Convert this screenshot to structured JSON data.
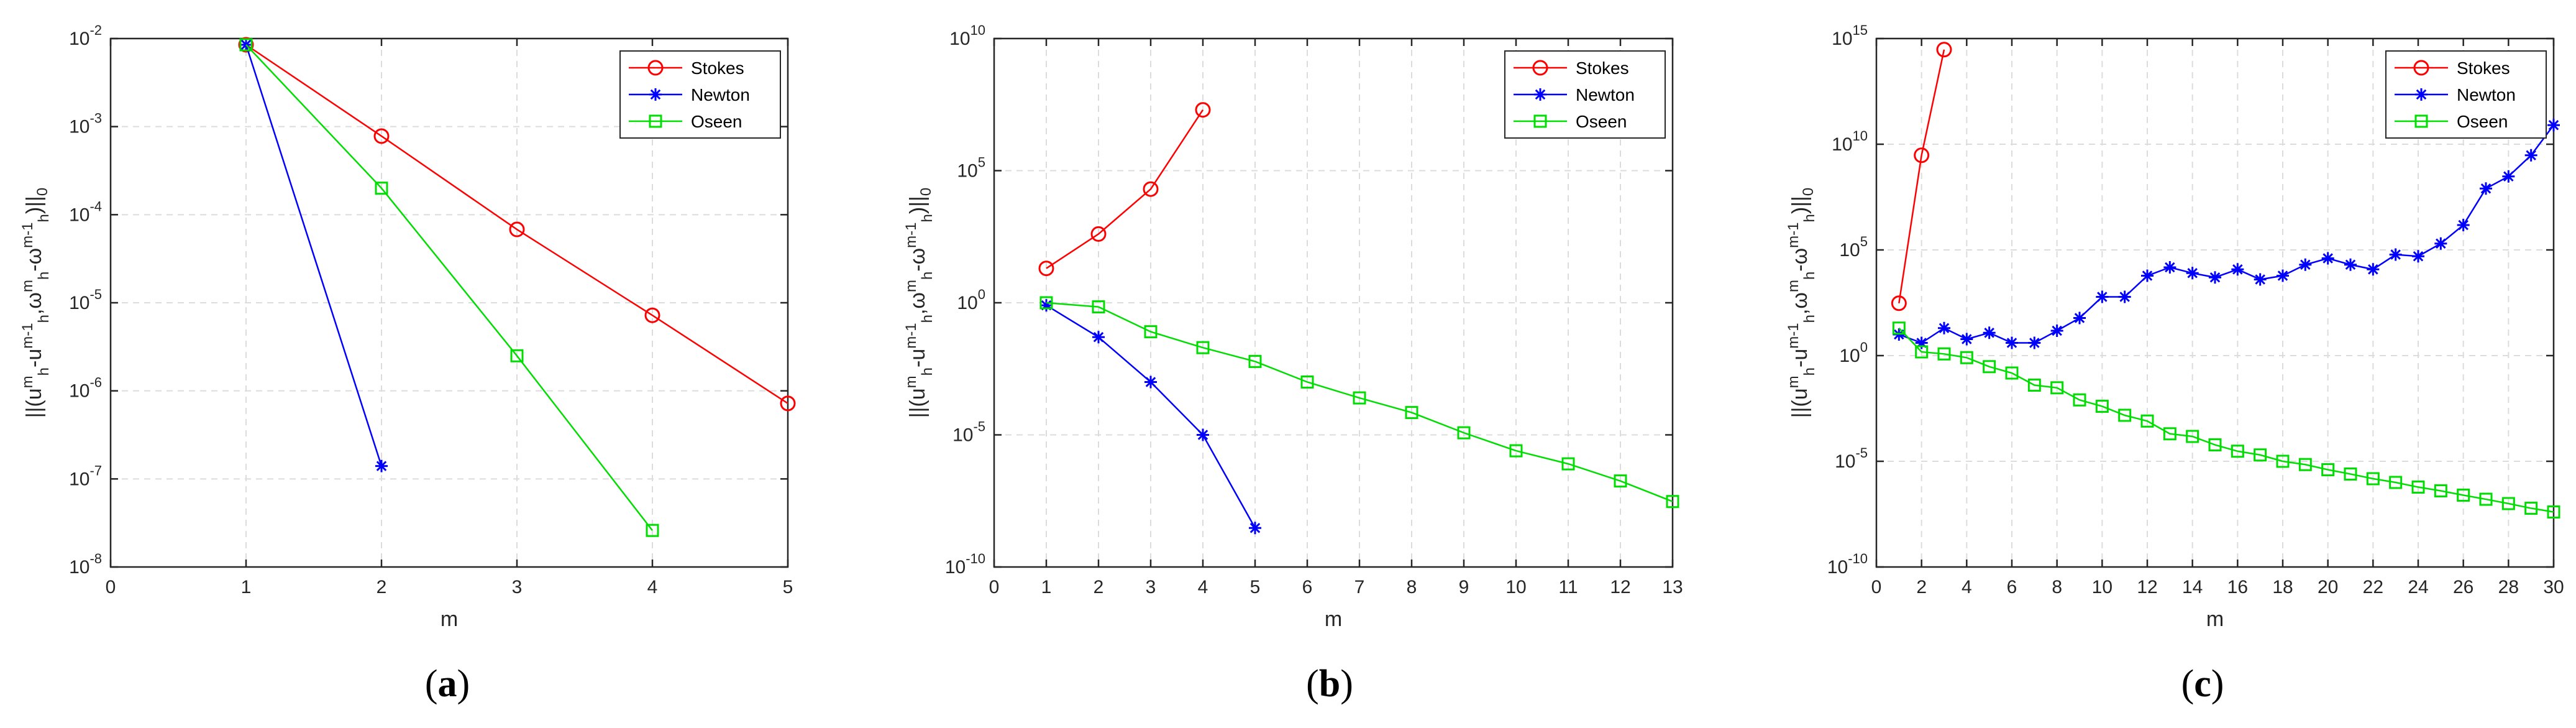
{
  "colors": {
    "Stokes": "#ff0000",
    "Newton": "#0000ff",
    "Oseen": "#00dd00",
    "axis": "#262626",
    "grid": "#dcdcdc"
  },
  "chart_data": [
    {
      "type": "line",
      "panel_label": "a",
      "xlabel": "m",
      "ylabel": "||(u_h^m-u_h^{m-1}, ω_h^m-ω_h^{m-1})||_0",
      "yscale": "log",
      "xlim": [
        0,
        5
      ],
      "ylim_exp": [
        -8,
        -2
      ],
      "xticks": [
        0,
        1,
        2,
        3,
        4,
        5
      ],
      "yticks_exp": [
        -8,
        -7,
        -6,
        -5,
        -4,
        -3,
        -2
      ],
      "legend_position": "top-right",
      "series": [
        {
          "name": "Stokes",
          "marker": "circle",
          "x": [
            1,
            2,
            3,
            4,
            5
          ],
          "y": [
            0.0085,
            0.00078,
            6.8e-05,
            7.2e-06,
            7.2e-07
          ]
        },
        {
          "name": "Newton",
          "marker": "star",
          "x": [
            1,
            2
          ],
          "y": [
            0.0085,
            1.4e-07
          ]
        },
        {
          "name": "Oseen",
          "marker": "square",
          "x": [
            1,
            2,
            3,
            4
          ],
          "y": [
            0.0085,
            0.0002,
            2.5e-06,
            2.6e-08
          ]
        }
      ]
    },
    {
      "type": "line",
      "panel_label": "b",
      "xlabel": "m",
      "ylabel": "||(u_h^m-u_h^{m-1}, ω_h^m-ω_h^{m-1})||_0",
      "yscale": "log",
      "xlim": [
        0,
        13
      ],
      "ylim_exp": [
        -10,
        10
      ],
      "xticks": [
        0,
        1,
        2,
        3,
        4,
        5,
        6,
        7,
        8,
        9,
        10,
        11,
        12,
        13
      ],
      "yticks_exp": [
        -10,
        -5,
        0,
        5,
        10
      ],
      "legend_position": "top-right",
      "series": [
        {
          "name": "Stokes",
          "marker": "circle",
          "x": [
            1,
            2,
            3,
            4
          ],
          "y": [
            20,
            400,
            20000,
            20000000
          ]
        },
        {
          "name": "Newton",
          "marker": "star",
          "x": [
            1,
            2,
            3,
            4,
            5
          ],
          "y": [
            0.8,
            0.05,
            0.001,
            1e-05,
            3e-09
          ]
        },
        {
          "name": "Oseen",
          "marker": "square",
          "x": [
            1,
            2,
            3,
            4,
            5,
            6,
            7,
            8,
            9,
            10,
            11,
            12,
            13
          ],
          "y": [
            1,
            0.7,
            0.08,
            0.02,
            0.006,
            0.001,
            0.00025,
            7e-05,
            1.2e-05,
            2.5e-06,
            8e-07,
            1.8e-07,
            3e-08
          ]
        }
      ]
    },
    {
      "type": "line",
      "panel_label": "c",
      "xlabel": "m",
      "ylabel": "||(u_h^m-u_h^{m-1}, ω_h^m-ω_h^{m-1})||_0",
      "yscale": "log",
      "xlim": [
        0,
        30
      ],
      "ylim_exp": [
        -10,
        15
      ],
      "xticks": [
        0,
        2,
        4,
        6,
        8,
        10,
        12,
        14,
        16,
        18,
        20,
        22,
        24,
        26,
        28,
        30
      ],
      "yticks_exp": [
        -10,
        -5,
        0,
        5,
        10,
        15
      ],
      "legend_position": "top-right",
      "series": [
        {
          "name": "Stokes",
          "marker": "circle",
          "x": [
            1,
            2,
            3
          ],
          "y": [
            300,
            3000000000,
            300000000000000
          ]
        },
        {
          "name": "Newton",
          "marker": "star",
          "x": [
            1,
            2,
            3,
            4,
            5,
            6,
            7,
            8,
            9,
            10,
            11,
            12,
            13,
            14,
            15,
            16,
            17,
            18,
            19,
            20,
            21,
            22,
            23,
            24,
            25,
            26,
            27,
            28,
            29,
            30
          ],
          "y": [
            10,
            4,
            20,
            6,
            12,
            4,
            4,
            15,
            60,
            600,
            600,
            6000,
            15000,
            8000,
            5000,
            12000,
            4000,
            6000,
            20000,
            40000,
            20000,
            12000,
            60000,
            50000,
            200000,
            1500000,
            80000000,
            300000000,
            3000000000,
            80000000000
          ]
        },
        {
          "name": "Oseen",
          "marker": "square",
          "x": [
            1,
            2,
            3,
            4,
            5,
            6,
            7,
            8,
            9,
            10,
            11,
            12,
            13,
            14,
            15,
            16,
            17,
            18,
            19,
            20,
            21,
            22,
            23,
            24,
            25,
            26,
            27,
            28,
            29,
            30
          ],
          "y": [
            20,
            1.5,
            1.2,
            0.8,
            0.3,
            0.15,
            0.04,
            0.03,
            0.008,
            0.004,
            0.0015,
            0.0008,
            0.0002,
            0.00015,
            6e-05,
            3e-05,
            2e-05,
            1e-05,
            7e-06,
            4e-06,
            2.5e-06,
            1.5e-06,
            1e-06,
            6e-07,
            4e-07,
            2.5e-07,
            1.6e-07,
            1e-07,
            6e-08,
            4e-08
          ]
        }
      ]
    }
  ]
}
